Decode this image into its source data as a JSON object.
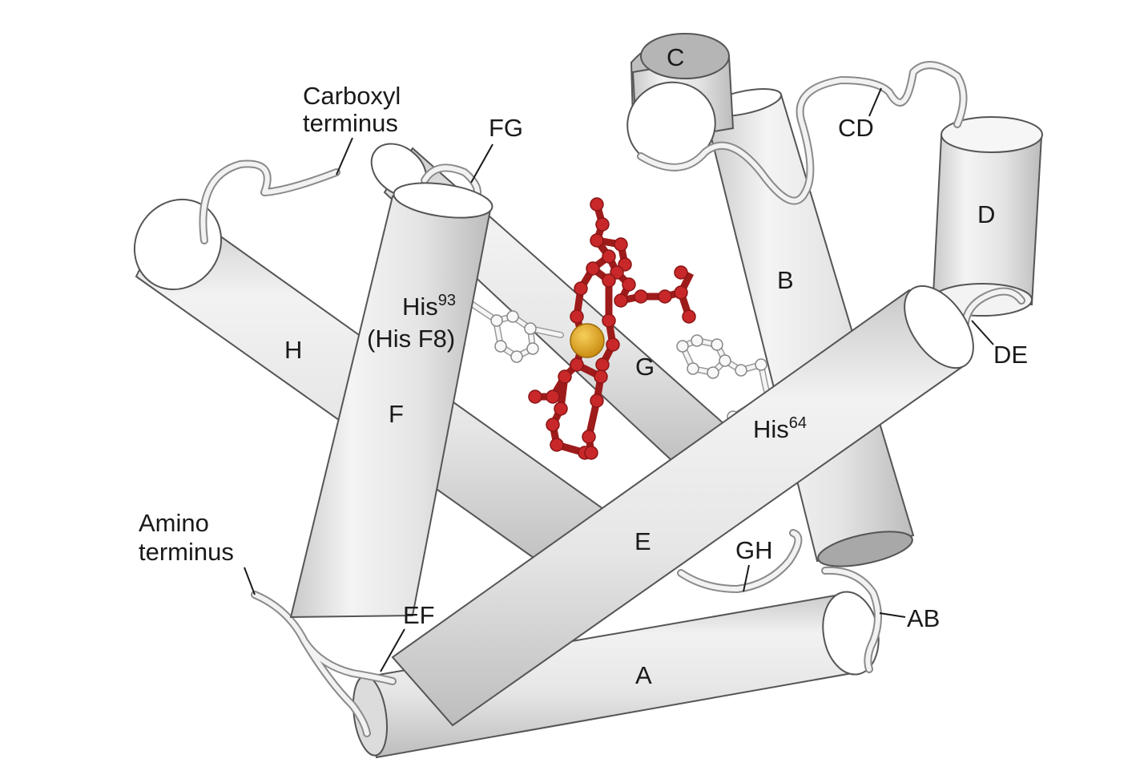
{
  "labels": {
    "carboxyl_line1": "Carboxyl",
    "carboxyl_line2": "terminus",
    "amino_line1": "Amino",
    "amino_line2": "terminus",
    "his93": "His",
    "his93_sup": "93",
    "his_f8": "(His F8)",
    "his64": "His",
    "his64_sup": "64",
    "helix_a": "A",
    "helix_b": "B",
    "helix_c": "C",
    "helix_d": "D",
    "helix_e": "E",
    "helix_f": "F",
    "helix_g": "G",
    "helix_h": "H",
    "loop_ab": "AB",
    "loop_cd": "CD",
    "loop_de": "DE",
    "loop_ef": "EF",
    "loop_fg": "FG",
    "loop_gh": "GH"
  },
  "colors": {
    "helix_fill": "#e9e9e9",
    "heme": "#c8282a",
    "iron": "#e0a526",
    "histidine": "#f8f8f8",
    "outline": "#555555"
  }
}
